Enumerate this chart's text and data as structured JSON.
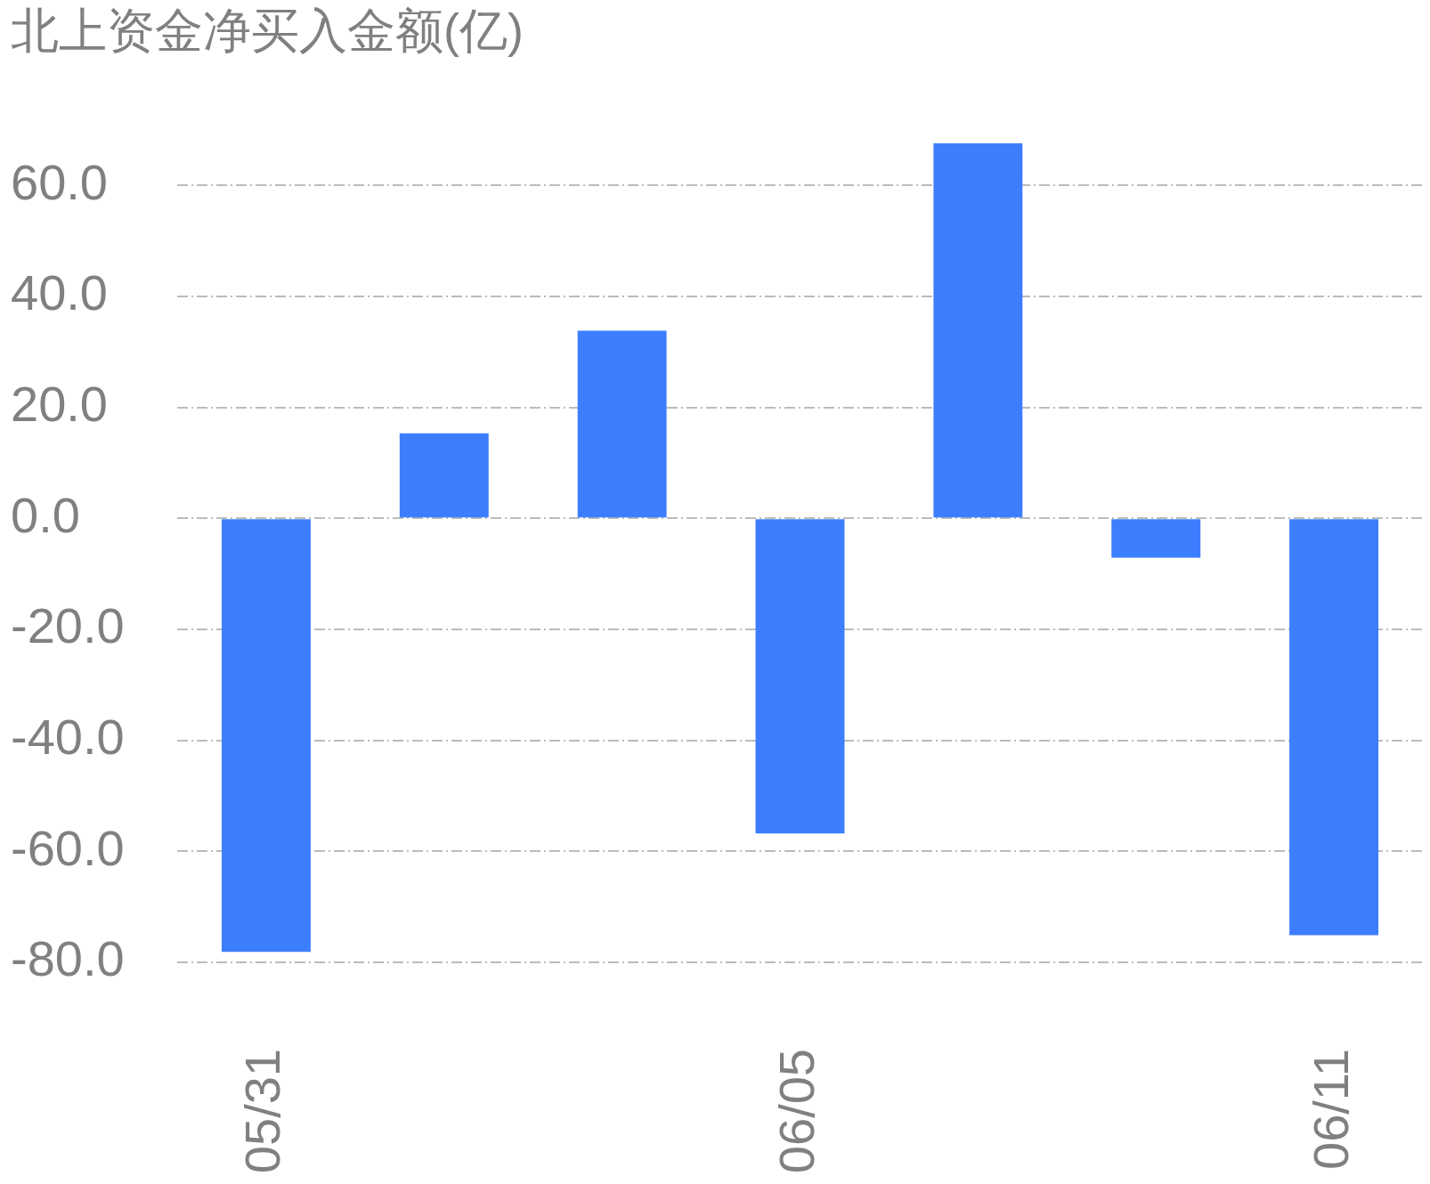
{
  "chart_data": {
    "type": "bar",
    "title": "北上资金净买入金额(亿)",
    "categories": [
      "05/31",
      null,
      null,
      "06/05",
      null,
      null,
      "06/11"
    ],
    "values": [
      -78.1,
      15.3,
      33.8,
      -56.8,
      67.6,
      -7.1,
      -75.1
    ],
    "color": "#3d7eff",
    "ylim": [
      -80,
      67.6
    ],
    "yticks": [
      {
        "value": -80,
        "label": "-80.0"
      },
      {
        "value": -60,
        "label": "-60.0"
      },
      {
        "value": -40,
        "label": "-40.0"
      },
      {
        "value": -20,
        "label": "-20.0"
      },
      {
        "value": 0,
        "label": "0.0"
      },
      {
        "value": 20,
        "label": "20.0"
      },
      {
        "value": 40,
        "label": "40.0"
      },
      {
        "value": 60,
        "label": "60.0"
      }
    ],
    "grid": "y",
    "legend": false
  }
}
